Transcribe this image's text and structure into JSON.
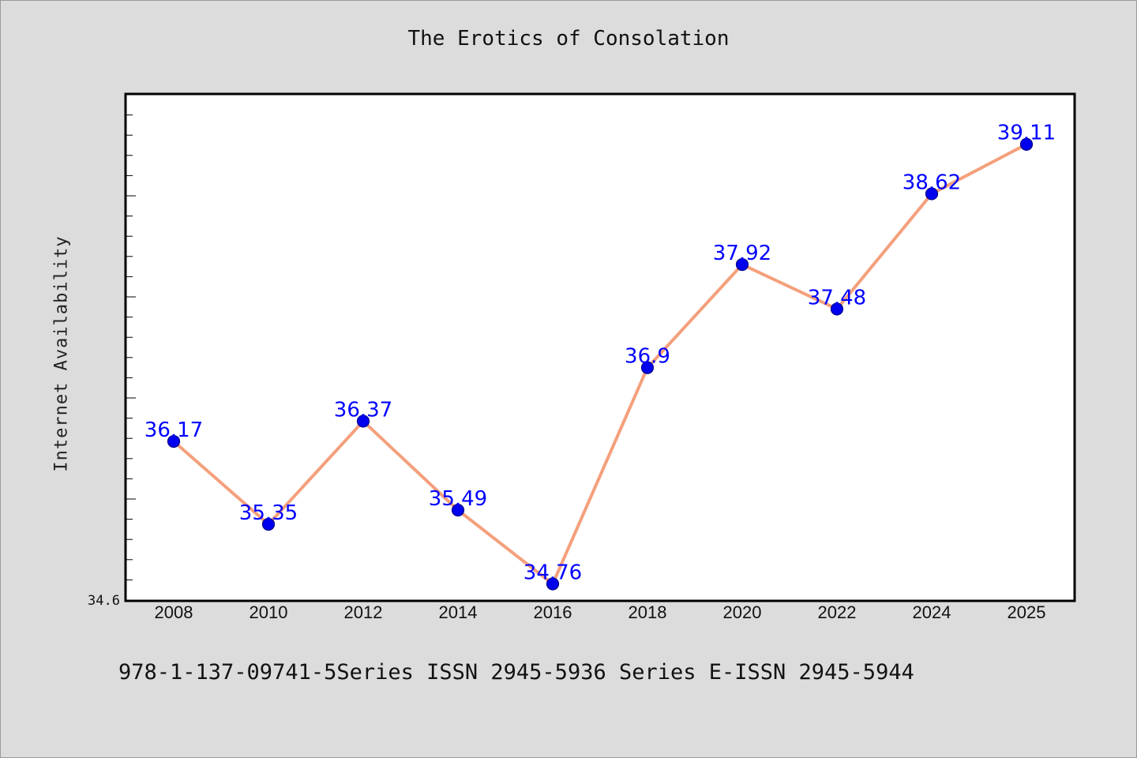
{
  "chart_data": {
    "type": "line",
    "title": "The Erotics of Consolation",
    "xlabel": "",
    "ylabel": "Internet Availability",
    "categories": [
      "2008",
      "2010",
      "2012",
      "2014",
      "2016",
      "2018",
      "2020",
      "2022",
      "2024",
      "2025"
    ],
    "series": [
      {
        "values": [
          36.17,
          35.35,
          36.37,
          35.49,
          34.76,
          36.9,
          37.92,
          37.48,
          38.62,
          39.11
        ]
      }
    ],
    "data_labels": [
      "36.17",
      "35.35",
      "36.37",
      "35.49",
      "34.76",
      "36.9",
      "37.92",
      "37.48",
      "38.62",
      "39.11"
    ],
    "y_tick_labels": [
      "34.6"
    ],
    "ylim": [
      34.6,
      39.6
    ],
    "grid": false,
    "legend": "none",
    "colors": {
      "line": "#f4a07c",
      "marker": "#0000ee",
      "data_label": "#0000ff",
      "background": "#dcdcdc",
      "plot_background": "#ffffff"
    }
  },
  "footer": "978-1-137-09741-5Series ISSN 2945-5936 Series E-ISSN 2945-5944"
}
